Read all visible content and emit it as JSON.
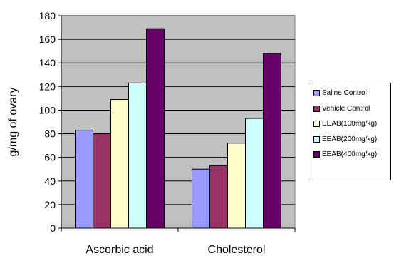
{
  "chart_data": {
    "type": "bar",
    "categories": [
      "Ascorbic acid",
      "Cholesterol"
    ],
    "series": [
      {
        "name": "Saline Control",
        "color": "#9999ff",
        "values": [
          83,
          50
        ]
      },
      {
        "name": "Vehicle Control",
        "color": "#993366",
        "values": [
          80,
          53
        ]
      },
      {
        "name": "EEAB(100mg/kg)",
        "color": "#ffffcc",
        "values": [
          109,
          72
        ]
      },
      {
        "name": "EEAB(200mg/kg)",
        "color": "#ccffff",
        "values": [
          123,
          93
        ]
      },
      {
        "name": "EEAB(400mg/kg)",
        "color": "#660066",
        "values": [
          169,
          148
        ]
      }
    ],
    "ylabel": "g/mg of ovary",
    "ylim": [
      0,
      180
    ],
    "yticks": [
      0,
      20,
      40,
      60,
      80,
      100,
      120,
      140,
      160,
      180
    ],
    "grid": true,
    "plot_background": "#c0c0c0",
    "legend_position": "right"
  }
}
